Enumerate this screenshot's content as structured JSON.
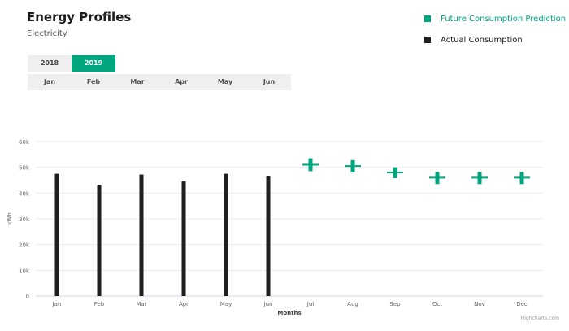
{
  "header": {
    "title": "Energy Profiles",
    "subtitle": "Electricity"
  },
  "legend": [
    {
      "label": "Future Consumption Prediction",
      "color": "#00a77e"
    },
    {
      "label": "Actual Consumption",
      "color": "#1e1e1e"
    }
  ],
  "year_tabs": [
    {
      "label": "2018",
      "active": false
    },
    {
      "label": "2019",
      "active": true
    }
  ],
  "month_tabs": [
    "Jan",
    "Feb",
    "Mar",
    "Apr",
    "May",
    "Jun"
  ],
  "credits": "Highcharts.com",
  "chart_data": {
    "type": "bar",
    "xlabel": "Months",
    "ylabel": "kWh",
    "ylim": [
      0,
      60000
    ],
    "yticks": [
      0,
      10000,
      20000,
      30000,
      40000,
      50000,
      60000
    ],
    "ytick_labels": [
      "0",
      "10k",
      "20k",
      "30k",
      "40k",
      "50k",
      "60k"
    ],
    "categories": [
      "Jan",
      "Feb",
      "Mar",
      "Apr",
      "May",
      "Jun",
      "Jul",
      "Aug",
      "Sep",
      "Oct",
      "Nov",
      "Dec"
    ],
    "series": [
      {
        "name": "Actual Consumption",
        "type": "column",
        "color": "#1e1e1e",
        "values": [
          47500,
          43000,
          47200,
          44500,
          47500,
          46500,
          null,
          null,
          null,
          null,
          null,
          null
        ]
      },
      {
        "name": "Future Consumption Prediction",
        "type": "errorbar",
        "color": "#00a77e",
        "values": [
          null,
          null,
          null,
          null,
          null,
          null,
          51000,
          50500,
          48000,
          46000,
          46000,
          46000
        ],
        "low": [
          null,
          null,
          null,
          null,
          null,
          null,
          48500,
          48000,
          45800,
          43500,
          43500,
          43500
        ],
        "high": [
          null,
          null,
          null,
          null,
          null,
          null,
          53500,
          52800,
          50000,
          48200,
          48200,
          48200
        ]
      }
    ]
  }
}
